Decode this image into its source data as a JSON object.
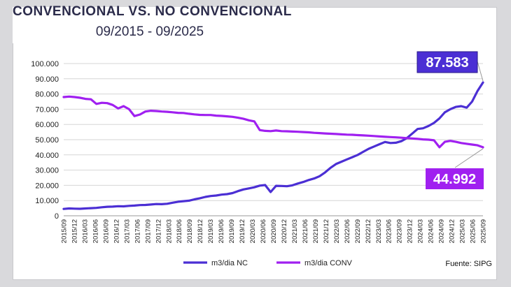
{
  "header": {
    "title": "CONVENCIONAL VS. NO CONVENCIONAL",
    "subtitle": "09/2015 - 09/2025"
  },
  "source": "Fuente: SIPG",
  "colors": {
    "nc": "#4b2fd4",
    "conv": "#a020f0"
  },
  "chart_data": {
    "type": "line",
    "title": "CONVENCIONAL VS. NO CONVENCIONAL",
    "subtitle": "09/2015 - 09/2025",
    "xlabel": "",
    "ylabel": "",
    "ylim": [
      0,
      100000
    ],
    "yticks": [
      "0",
      "10.000",
      "20.000",
      "30.000",
      "40.000",
      "50.000",
      "60.000",
      "70.000",
      "80.000",
      "90.000",
      "100.000"
    ],
    "x_ticks": [
      "2015/09",
      "2015/12",
      "2016/03",
      "2016/06",
      "2016/09",
      "2016/12",
      "2017/03",
      "2017/06",
      "2017/09",
      "2017/12",
      "2018/03",
      "2018/06",
      "2018/09",
      "2018/12",
      "2019/03",
      "2019/06",
      "2019/09",
      "2019/12",
      "2020/03",
      "2020/06",
      "2020/09",
      "2020/12",
      "2021/03",
      "2021/06",
      "2021/09",
      "2021/12",
      "2022/03",
      "2022/06",
      "2022/09",
      "2022/12",
      "2023/03",
      "2023/06",
      "2023/09",
      "2023/12",
      "2024/03",
      "2024/06",
      "2024/09",
      "2024/12",
      "2025/03",
      "2025/06",
      "2025/09"
    ],
    "grid": true,
    "legend": "bottom",
    "series": [
      {
        "name": "m3/dia NC",
        "color": "#4b2fd4",
        "end_label": "87.583",
        "values": [
          4500,
          4800,
          4700,
          4600,
          4800,
          5000,
          5200,
          5600,
          5900,
          6000,
          6300,
          6200,
          6500,
          6700,
          7000,
          7100,
          7400,
          7700,
          7600,
          7900,
          8600,
          9200,
          9600,
          9900,
          10800,
          11500,
          12400,
          13000,
          13300,
          13900,
          14200,
          14900,
          16200,
          17300,
          18000,
          18700,
          19800,
          20200,
          15600,
          19700,
          19600,
          19400,
          20000,
          21200,
          22200,
          23500,
          24500,
          26000,
          28500,
          31500,
          34000,
          35500,
          37000,
          38500,
          40000,
          42000,
          44000,
          45500,
          47000,
          48500,
          47800,
          48000,
          49000,
          51000,
          54000,
          57000,
          57500,
          59000,
          61000,
          64000,
          68000,
          70000,
          71500,
          72000,
          71000,
          75000,
          82000,
          87583
        ]
      },
      {
        "name": "m3/dia CONV",
        "color": "#a020f0",
        "end_label": "44.992",
        "values": [
          78000,
          78300,
          78000,
          77500,
          76800,
          76500,
          73500,
          74200,
          74000,
          72800,
          70500,
          72000,
          70000,
          65500,
          66500,
          68500,
          69000,
          68800,
          68500,
          68300,
          68000,
          67600,
          67500,
          67000,
          66600,
          66300,
          66200,
          66200,
          65800,
          65600,
          65300,
          65000,
          64400,
          63700,
          62700,
          62000,
          56300,
          55800,
          55600,
          56000,
          55600,
          55500,
          55300,
          55200,
          55000,
          54800,
          54500,
          54300,
          54100,
          53900,
          53700,
          53500,
          53300,
          53200,
          53000,
          52800,
          52600,
          52400,
          52100,
          51900,
          51700,
          51500,
          51300,
          51000,
          50800,
          50500,
          50200,
          50000,
          49600,
          45000,
          48600,
          49200,
          48600,
          47800,
          47300,
          46800,
          46300,
          44992
        ]
      }
    ]
  }
}
